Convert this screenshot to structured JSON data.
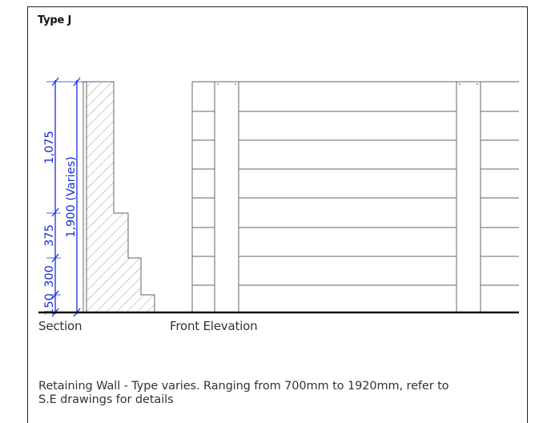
{
  "title": "Type J",
  "dimensions": {
    "upper": "1,075",
    "middle": "375",
    "lower": "300",
    "base": "150",
    "overall": "1,900 (Varies)"
  },
  "labels": {
    "section": "Section",
    "front_elevation": "Front Elevation"
  },
  "note": "Retaining Wall - Type varies. Ranging from 700mm to 1920mm, refer to S.E drawings for details",
  "colors": {
    "dimension": "#1a2fd6",
    "linework": "#555555",
    "ground": "#111111"
  }
}
